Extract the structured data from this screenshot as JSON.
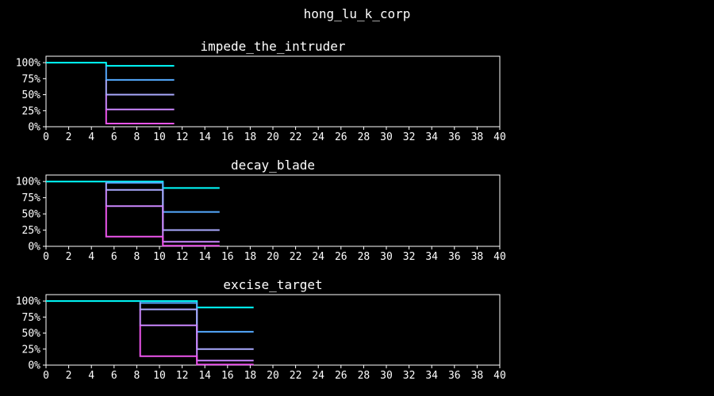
{
  "suptitle": "hong_lu_k_corp",
  "colors": {
    "background": "#000000",
    "axes": "#ffffff",
    "text": "#ffffff",
    "series": [
      "#00ffff",
      "#55aaff",
      "#aaaaff",
      "#cc88ff",
      "#ee55ee",
      "#ff00ff"
    ]
  },
  "chart_data": [
    {
      "type": "line",
      "step": true,
      "title": "impede_the_intruder",
      "xlim": [
        0,
        40
      ],
      "ylim": [
        0,
        110
      ],
      "xticks": [
        0,
        2,
        4,
        6,
        8,
        10,
        12,
        14,
        16,
        18,
        20,
        22,
        24,
        26,
        28,
        30,
        32,
        34,
        36,
        38,
        40
      ],
      "yticks": [
        0,
        25,
        50,
        75,
        100
      ],
      "ytick_labels": [
        "0%",
        "25%",
        "50%",
        "75%",
        "100%"
      ],
      "series": [
        {
          "x": [
            0,
            5.3,
            5.3,
            11.3
          ],
          "y": [
            100,
            100,
            95,
            95
          ]
        },
        {
          "x": [
            5.3,
            5.3,
            11.3
          ],
          "y": [
            95,
            73,
            73
          ]
        },
        {
          "x": [
            5.3,
            5.3,
            11.3
          ],
          "y": [
            73,
            50,
            50
          ]
        },
        {
          "x": [
            5.3,
            5.3,
            11.3
          ],
          "y": [
            50,
            27,
            27
          ]
        },
        {
          "x": [
            5.3,
            5.3,
            11.3
          ],
          "y": [
            27,
            5,
            5
          ]
        }
      ]
    },
    {
      "type": "line",
      "step": true,
      "title": "decay_blade",
      "xlim": [
        0,
        40
      ],
      "ylim": [
        0,
        110
      ],
      "xticks": [
        0,
        2,
        4,
        6,
        8,
        10,
        12,
        14,
        16,
        18,
        20,
        22,
        24,
        26,
        28,
        30,
        32,
        34,
        36,
        38,
        40
      ],
      "yticks": [
        0,
        25,
        50,
        75,
        100
      ],
      "ytick_labels": [
        "0%",
        "25%",
        "50%",
        "75%",
        "100%"
      ],
      "series": [
        {
          "x": [
            0,
            10.3,
            10.3,
            15.3
          ],
          "y": [
            100,
            100,
            90,
            90
          ]
        },
        {
          "x": [
            5.3,
            5.3,
            10.3,
            10.3,
            15.3
          ],
          "y": [
            100,
            98,
            98,
            53,
            53
          ]
        },
        {
          "x": [
            5.3,
            5.3,
            10.3,
            10.3,
            15.3
          ],
          "y": [
            98,
            87,
            87,
            25,
            25
          ]
        },
        {
          "x": [
            5.3,
            5.3,
            10.3,
            10.3,
            15.3
          ],
          "y": [
            87,
            62,
            62,
            7,
            7
          ]
        },
        {
          "x": [
            5.3,
            5.3,
            10.3,
            10.3,
            15.3
          ],
          "y": [
            62,
            15,
            15,
            1,
            1
          ]
        }
      ]
    },
    {
      "type": "line",
      "step": true,
      "title": "excise_target",
      "xlim": [
        0,
        40
      ],
      "ylim": [
        0,
        110
      ],
      "xticks": [
        0,
        2,
        4,
        6,
        8,
        10,
        12,
        14,
        16,
        18,
        20,
        22,
        24,
        26,
        28,
        30,
        32,
        34,
        36,
        38,
        40
      ],
      "yticks": [
        0,
        25,
        50,
        75,
        100
      ],
      "ytick_labels": [
        "0%",
        "25%",
        "50%",
        "75%",
        "100%"
      ],
      "series": [
        {
          "x": [
            0,
            13.3,
            13.3,
            18.3
          ],
          "y": [
            100,
            100,
            90,
            90
          ]
        },
        {
          "x": [
            8.3,
            8.3,
            13.3,
            13.3,
            18.3
          ],
          "y": [
            100,
            97,
            97,
            52,
            52
          ]
        },
        {
          "x": [
            8.3,
            8.3,
            13.3,
            13.3,
            18.3
          ],
          "y": [
            97,
            87,
            87,
            25,
            25
          ]
        },
        {
          "x": [
            8.3,
            8.3,
            13.3,
            13.3,
            18.3
          ],
          "y": [
            87,
            62,
            62,
            7,
            7
          ]
        },
        {
          "x": [
            8.3,
            8.3,
            13.3,
            13.3,
            18.3
          ],
          "y": [
            62,
            14,
            14,
            1,
            1
          ]
        }
      ]
    }
  ]
}
